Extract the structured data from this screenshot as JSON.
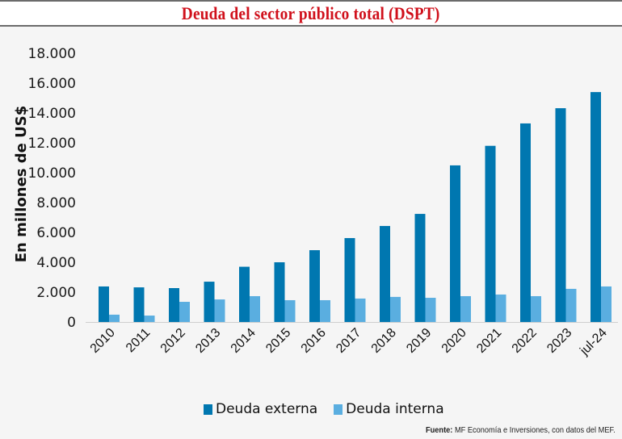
{
  "header": {
    "title": "Deuda del sector público total (DSPT)"
  },
  "colors": {
    "title": "#d0101b",
    "deuda_externa": "#0077b0",
    "deuda_interna": "#5aaee0",
    "axis": "#cfcfcf"
  },
  "legend": {
    "items": [
      {
        "label": "Deuda externa",
        "color": "#0077b0"
      },
      {
        "label": "Deuda interna",
        "color": "#5aaee0"
      }
    ]
  },
  "footer": {
    "source_label": "Fuente:",
    "source_text": " MF Economía e Inversiones, con datos del MEF."
  },
  "chart_data": {
    "type": "bar",
    "title": "Deuda del sector público total (DSPT)",
    "xlabel": "",
    "ylabel": "En millones de US$",
    "ylim": [
      0,
      18000
    ],
    "yticks": [
      0,
      2000,
      4000,
      6000,
      8000,
      10000,
      12000,
      14000,
      16000,
      18000
    ],
    "ytick_labels": [
      "0",
      "2.000",
      "4.000",
      "6.000",
      "8.000",
      "10.000",
      "12.000",
      "14.000",
      "16.000",
      "18.000"
    ],
    "grid": false,
    "legend_position": "bottom",
    "categories": [
      "2010",
      "2011",
      "2012",
      "2013",
      "2014",
      "2015",
      "2016",
      "2017",
      "2018",
      "2019",
      "2020",
      "2021",
      "2022",
      "2023",
      "jul-24"
    ],
    "series": [
      {
        "name": "Deuda externa",
        "values": [
          2380,
          2320,
          2270,
          2700,
          3700,
          4000,
          4810,
          5620,
          6430,
          7240,
          10490,
          11800,
          13300,
          14320,
          15400
        ]
      },
      {
        "name": "Deuda interna",
        "values": [
          490,
          430,
          1350,
          1510,
          1730,
          1460,
          1460,
          1570,
          1680,
          1620,
          1730,
          1840,
          1730,
          2220,
          2380
        ]
      }
    ]
  }
}
